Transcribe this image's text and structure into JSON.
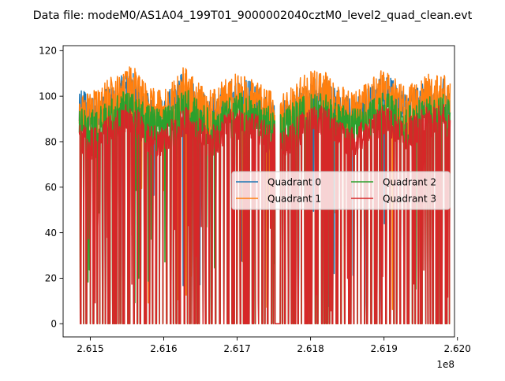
{
  "chart_data": {
    "type": "line",
    "title": "Data file: modeM0/AS1A04_199T01_9000002040cztM0_level2_quad_clean.evt",
    "xlabel": "",
    "ylabel": "",
    "x_offset_label": "1e8",
    "xlim": [
      2.61463,
      2.61996
    ],
    "ylim": [
      -5.8,
      122.2
    ],
    "x_ticks": [
      2.615,
      2.616,
      2.617,
      2.618,
      2.619,
      2.62
    ],
    "x_tick_labels": [
      "2.615",
      "2.616",
      "2.617",
      "2.618",
      "2.619",
      "2.620"
    ],
    "y_ticks": [
      0,
      20,
      40,
      60,
      80,
      100,
      120
    ],
    "y_tick_labels": [
      "0",
      "20",
      "40",
      "60",
      "80",
      "100",
      "120"
    ],
    "data_span": [
      2.61485,
      2.6199
    ],
    "gap": [
      2.61753,
      2.61759
    ],
    "legend": {
      "location": "center-right",
      "ncol": 2
    },
    "series": [
      {
        "name": "Quadrant 0",
        "color": "#1f77b4",
        "env_x": [
          2.6149,
          2.615,
          2.6151,
          2.6152,
          2.6153,
          2.6154,
          2.6155,
          2.6156,
          2.6157,
          2.6158,
          2.6159,
          2.616,
          2.6161,
          2.6162,
          2.6163,
          2.6164,
          2.6165,
          2.6166,
          2.6167,
          2.6168,
          2.6169,
          2.617,
          2.6171,
          2.6172,
          2.6173,
          2.6174,
          2.6175,
          2.6176,
          2.6177,
          2.6178,
          2.6179,
          2.618,
          2.6181,
          2.6182,
          2.6183,
          2.6184,
          2.6185,
          2.6186,
          2.6187,
          2.6188,
          2.6189,
          2.619,
          2.6191,
          2.6192,
          2.6193,
          2.6194,
          2.6195,
          2.6196,
          2.6197,
          2.6198,
          2.6199
        ],
        "env_y": [
          103,
          99,
          100,
          104,
          106,
          109,
          112,
          110,
          105,
          101,
          100,
          99,
          104,
          108,
          112,
          106,
          103,
          99,
          101,
          104,
          107,
          109,
          108,
          106,
          104,
          100,
          99,
          98,
          100,
          104,
          106,
          108,
          110,
          109,
          106,
          102,
          100,
          99,
          101,
          104,
          107,
          110,
          108,
          104,
          101,
          103,
          105,
          107,
          106,
          108,
          105
        ]
      },
      {
        "name": "Quadrant 1",
        "color": "#ff7f0e",
        "env_x": [
          2.6149,
          2.615,
          2.6151,
          2.6152,
          2.6153,
          2.6154,
          2.6155,
          2.6156,
          2.6157,
          2.6158,
          2.6159,
          2.616,
          2.6161,
          2.6162,
          2.6163,
          2.6164,
          2.6165,
          2.6166,
          2.6167,
          2.6168,
          2.6169,
          2.617,
          2.6171,
          2.6172,
          2.6173,
          2.6174,
          2.6175,
          2.6176,
          2.6177,
          2.6178,
          2.6179,
          2.618,
          2.6181,
          2.6182,
          2.6183,
          2.6184,
          2.6185,
          2.6186,
          2.6187,
          2.6188,
          2.6189,
          2.619,
          2.6191,
          2.6192,
          2.6193,
          2.6194,
          2.6195,
          2.6196,
          2.6197,
          2.6198,
          2.6199
        ],
        "env_y": [
          101,
          102,
          103,
          107,
          109,
          112,
          116,
          113,
          108,
          104,
          103,
          102,
          106,
          110,
          114,
          109,
          106,
          102,
          104,
          107,
          110,
          111,
          110,
          108,
          106,
          103,
          102,
          101,
          103,
          107,
          109,
          111,
          112,
          111,
          108,
          105,
          103,
          102,
          104,
          107,
          110,
          112,
          110,
          106,
          104,
          106,
          108,
          110,
          109,
          110,
          107
        ]
      },
      {
        "name": "Quadrant 2",
        "color": "#2ca02c",
        "env_x": [
          2.6149,
          2.615,
          2.6151,
          2.6152,
          2.6153,
          2.6154,
          2.6155,
          2.6156,
          2.6157,
          2.6158,
          2.6159,
          2.616,
          2.6161,
          2.6162,
          2.6163,
          2.6164,
          2.6165,
          2.6166,
          2.6167,
          2.6168,
          2.6169,
          2.617,
          2.6171,
          2.6172,
          2.6173,
          2.6174,
          2.6175,
          2.6176,
          2.6177,
          2.6178,
          2.6179,
          2.618,
          2.6181,
          2.6182,
          2.6183,
          2.6184,
          2.6185,
          2.6186,
          2.6187,
          2.6188,
          2.6189,
          2.619,
          2.6191,
          2.6192,
          2.6193,
          2.6194,
          2.6195,
          2.6196,
          2.6197,
          2.6198,
          2.6199
        ],
        "env_y": [
          96,
          94,
          95,
          98,
          100,
          102,
          104,
          102,
          99,
          96,
          95,
          95,
          98,
          101,
          104,
          100,
          98,
          95,
          96,
          99,
          101,
          102,
          101,
          100,
          99,
          96,
          95,
          94,
          96,
          98,
          100,
          101,
          102,
          101,
          99,
          97,
          96,
          95,
          96,
          98,
          100,
          102,
          101,
          98,
          96,
          98,
          99,
          101,
          100,
          102,
          99
        ]
      },
      {
        "name": "Quadrant 3",
        "color": "#d62728",
        "env_x": [
          2.6149,
          2.615,
          2.6151,
          2.6152,
          2.6153,
          2.6154,
          2.6155,
          2.6156,
          2.6157,
          2.6158,
          2.6159,
          2.616,
          2.6161,
          2.6162,
          2.6163,
          2.6164,
          2.6165,
          2.6166,
          2.6167,
          2.6168,
          2.6169,
          2.617,
          2.6171,
          2.6172,
          2.6173,
          2.6174,
          2.6175,
          2.6176,
          2.6177,
          2.6178,
          2.6179,
          2.618,
          2.6181,
          2.6182,
          2.6183,
          2.6184,
          2.6185,
          2.6186,
          2.6187,
          2.6188,
          2.6189,
          2.619,
          2.6191,
          2.6192,
          2.6193,
          2.6194,
          2.6195,
          2.6196,
          2.6197,
          2.6198,
          2.6199
        ],
        "env_y": [
          88,
          86,
          87,
          90,
          92,
          95,
          98,
          96,
          92,
          89,
          87,
          87,
          90,
          94,
          97,
          93,
          90,
          87,
          88,
          91,
          94,
          95,
          94,
          93,
          92,
          89,
          88,
          87,
          88,
          91,
          93,
          95,
          97,
          96,
          93,
          90,
          88,
          87,
          89,
          91,
          94,
          97,
          95,
          92,
          90,
          92,
          94,
          96,
          95,
          97,
          93
        ]
      }
    ]
  }
}
